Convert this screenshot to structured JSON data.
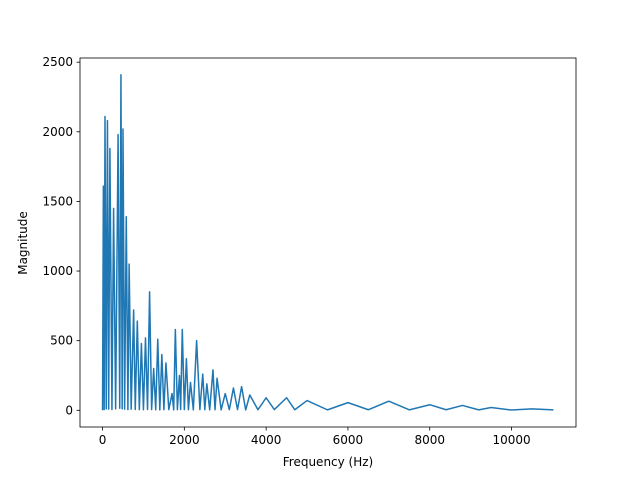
{
  "chart_data": {
    "type": "line",
    "xlabel": "Frequency (Hz)",
    "ylabel": "Magnitude",
    "x": [
      0,
      20,
      40,
      60,
      90,
      120,
      150,
      180,
      230,
      270,
      320,
      380,
      420,
      450,
      480,
      500,
      540,
      580,
      620,
      650,
      700,
      760,
      800,
      850,
      900,
      950,
      1000,
      1050,
      1100,
      1150,
      1200,
      1250,
      1300,
      1350,
      1400,
      1450,
      1500,
      1550,
      1620,
      1700,
      1740,
      1780,
      1830,
      1880,
      1910,
      1950,
      2000,
      2050,
      2100,
      2150,
      2220,
      2300,
      2380,
      2450,
      2500,
      2550,
      2620,
      2700,
      2750,
      2800,
      2900,
      3000,
      3100,
      3200,
      3300,
      3400,
      3500,
      3600,
      3800,
      4000,
      4200,
      4500,
      4700,
      5000,
      5500,
      6000,
      6500,
      7000,
      7500,
      8000,
      8400,
      8800,
      9200,
      9500,
      10000,
      10500,
      11025
    ],
    "series": [
      {
        "color": "#1f77b4",
        "values": [
          0,
          1610,
          5,
          2110,
          10,
          2080,
          8,
          1880,
          6,
          1450,
          10,
          1980,
          15,
          2410,
          10,
          2020,
          8,
          1390,
          5,
          1050,
          8,
          720,
          6,
          640,
          5,
          480,
          4,
          520,
          6,
          850,
          5,
          300,
          4,
          510,
          3,
          400,
          4,
          340,
          5,
          120,
          3,
          580,
          4,
          250,
          6,
          580,
          5,
          370,
          4,
          200,
          3,
          500,
          5,
          260,
          4,
          190,
          3,
          290,
          4,
          230,
          3,
          120,
          4,
          160,
          5,
          170,
          3,
          110,
          4,
          90,
          5,
          90,
          4,
          70,
          3,
          55,
          4,
          65,
          3,
          40,
          4,
          35,
          3,
          20,
          2,
          10,
          3
        ]
      }
    ],
    "xlim": [
      -551.25,
      11576.25
    ],
    "ylim": [
      -120,
      2530
    ],
    "xticks": [
      0,
      2000,
      4000,
      6000,
      8000,
      10000
    ],
    "yticks": [
      0,
      500,
      1000,
      1500,
      2000,
      2500
    ]
  }
}
